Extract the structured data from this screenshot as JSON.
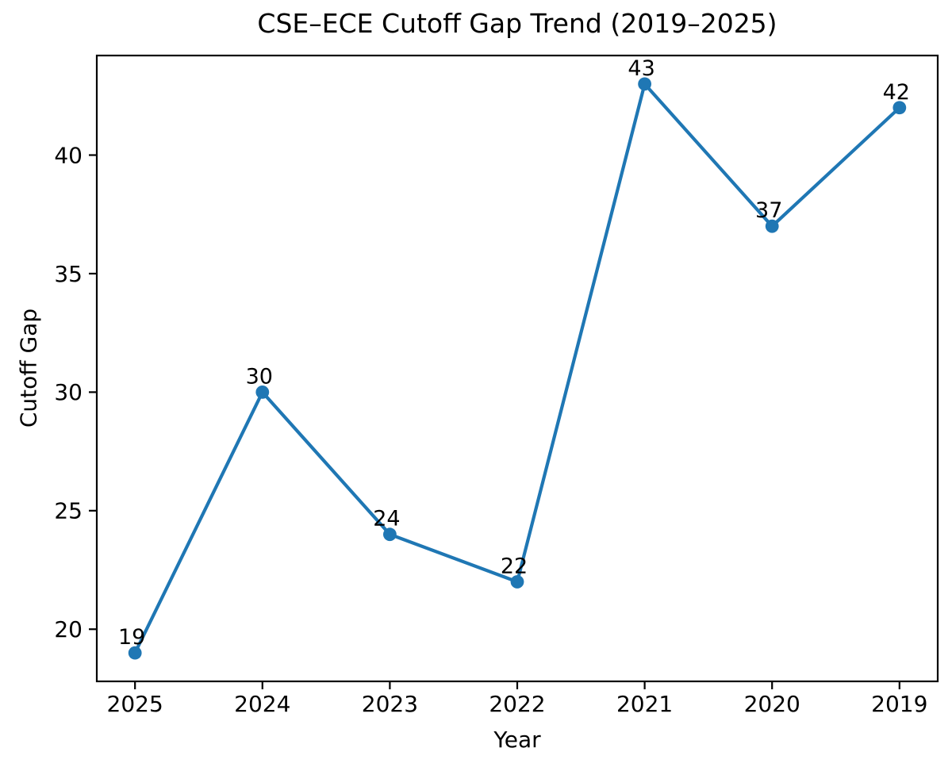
{
  "figure": {
    "background": "#ffffff",
    "text_color": "#000000"
  },
  "chart_data": {
    "type": "line",
    "title": "CSE–ECE Cutoff Gap Trend (2019–2025)",
    "xlabel": "Year",
    "ylabel": "Cutoff Gap",
    "categories": [
      "2025",
      "2024",
      "2023",
      "2022",
      "2021",
      "2020",
      "2019"
    ],
    "series": [
      {
        "name": "Cutoff Gap",
        "values": [
          19,
          30,
          24,
          22,
          43,
          37,
          42
        ]
      }
    ],
    "point_labels": [
      "19",
      "30",
      "24",
      "22",
      "43",
      "37",
      "42"
    ],
    "yticks": [
      20,
      25,
      30,
      35,
      40
    ],
    "ylim": [
      17.8,
      44.2
    ],
    "line_color": "#1f77b4",
    "marker": "circle",
    "grid": false,
    "legend": "none"
  }
}
